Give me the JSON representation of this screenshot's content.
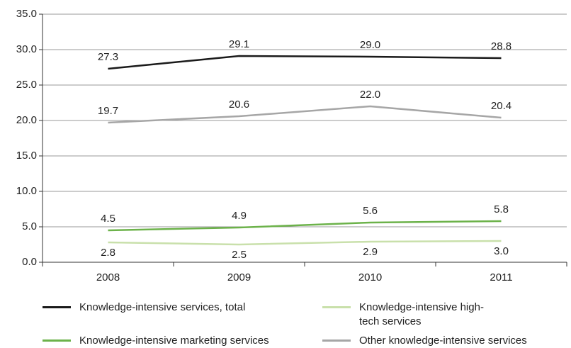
{
  "chart_data": {
    "type": "line",
    "categories": [
      "2008",
      "2009",
      "2010",
      "2011"
    ],
    "series": [
      {
        "name": "Knowledge-intensive services, total",
        "color": "#1a1a1a",
        "values": [
          27.3,
          29.1,
          29.0,
          28.8
        ],
        "value_labels": [
          "27.3",
          "29.1",
          "29.0",
          "28.8"
        ]
      },
      {
        "name": "Knowledge-intensive high-tech services",
        "color": "#c9e0ab",
        "values": [
          2.8,
          2.5,
          2.9,
          3.0
        ],
        "value_labels": [
          "2.8",
          "2.5",
          "2.9",
          "3.0"
        ]
      },
      {
        "name": "Knowledge-intensive marketing services",
        "color": "#6cb24a",
        "values": [
          4.5,
          4.9,
          5.6,
          5.8
        ],
        "value_labels": [
          "4.5",
          "4.9",
          "5.6",
          "5.8"
        ]
      },
      {
        "name": "Other knowledge-intensive services",
        "color": "#a6a6a6",
        "values": [
          19.7,
          20.6,
          22.0,
          20.4
        ],
        "value_labels": [
          "19.7",
          "20.6",
          "22.0",
          "20.4"
        ]
      }
    ],
    "ylim": [
      0,
      35
    ],
    "yticks": [
      {
        "value": 0,
        "label": "0.0"
      },
      {
        "value": 5,
        "label": "5.0"
      },
      {
        "value": 10,
        "label": "10.0"
      },
      {
        "value": 15,
        "label": "15.0"
      },
      {
        "value": 20,
        "label": "20.0"
      },
      {
        "value": 25,
        "label": "25.0"
      },
      {
        "value": 30,
        "label": "30.0"
      },
      {
        "value": 35,
        "label": "35.0"
      }
    ],
    "grid": true
  }
}
